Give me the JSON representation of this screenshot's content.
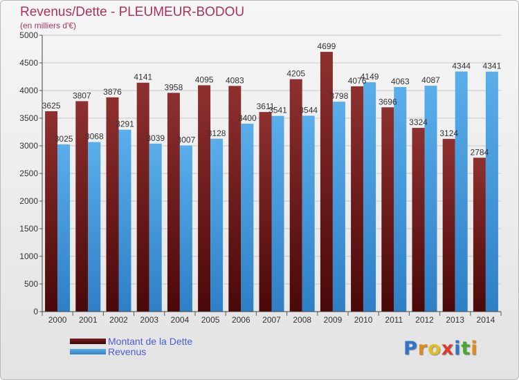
{
  "header": {
    "title": "Revenus/Dette - PLEUMEUR-BODOU",
    "subtitle": "(en milliers d'€)"
  },
  "chart_data": {
    "type": "bar",
    "categories": [
      "2000",
      "2001",
      "2002",
      "2003",
      "2004",
      "2005",
      "2006",
      "2007",
      "2008",
      "2009",
      "2010",
      "2011",
      "2012",
      "2013",
      "2014"
    ],
    "series": [
      {
        "name": "Montant de la Dette",
        "color": "#8b2a2a",
        "values": [
          3625,
          3807,
          3876,
          4141,
          3958,
          4095,
          4083,
          3611,
          4205,
          4699,
          4076,
          3696,
          3324,
          3124,
          2784
        ],
        "labels": [
          "3625",
          "3807",
          "3876",
          "4141",
          "3958",
          "4095",
          "4083",
          "3611",
          "4205",
          "4699",
          "4076",
          "3696",
          "3324",
          "3124",
          "2784"
        ]
      },
      {
        "name": "Revenus",
        "color": "#4a9fe0",
        "values": [
          3025,
          3068,
          3291,
          3039,
          3007,
          3128,
          3400,
          3541,
          3544,
          3798,
          4149,
          4063,
          4087,
          4344,
          4341
        ],
        "labels": [
          "3025",
          "3068",
          "3291",
          "3039",
          "3007",
          "3128",
          "3400",
          "3541",
          "3544",
          "3798",
          "4149",
          "4063",
          "4087",
          "4344",
          "4341"
        ]
      }
    ],
    "yticks": [
      0,
      500,
      1000,
      1500,
      2000,
      2500,
      3000,
      3500,
      4000,
      4500,
      5000
    ],
    "ylim": [
      0,
      5000
    ],
    "grid": true,
    "legend_position": "bottom-left"
  },
  "legend": {
    "items": [
      {
        "label": "Montant de la Dette",
        "color": "#8b2a2a"
      },
      {
        "label": "Revenus",
        "color": "#4a9fe0"
      }
    ]
  },
  "logo": {
    "text": "Proxiti",
    "letters": [
      {
        "ch": "P",
        "color": "#2f74c9"
      },
      {
        "ch": "r",
        "color": "#e08a1e"
      },
      {
        "ch": "o",
        "color": "#e0c020"
      },
      {
        "ch": "x",
        "color": "#e03a2a"
      },
      {
        "ch": "i",
        "color": "#2f74c9"
      },
      {
        "ch": "t",
        "color": "#4aa830"
      },
      {
        "ch": "i",
        "color": "#e08a1e"
      }
    ]
  }
}
